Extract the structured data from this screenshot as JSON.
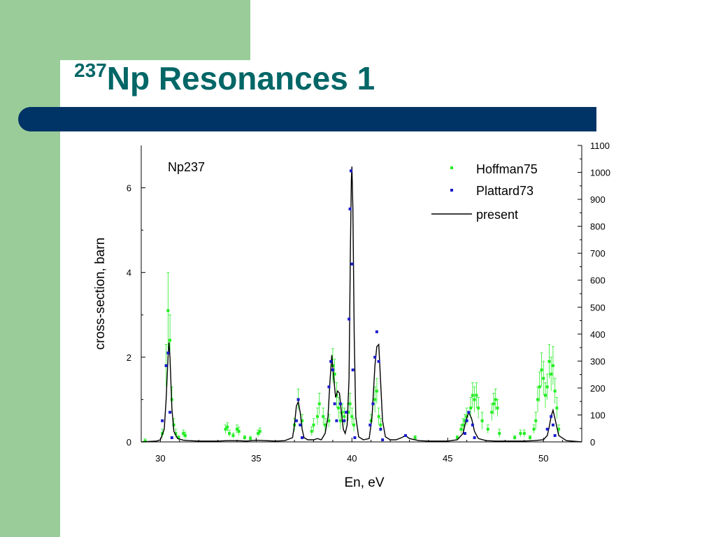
{
  "slide": {
    "title_sup": "237",
    "title_main": "Np Resonances 1",
    "colors": {
      "title": "#006666",
      "bar": "#003366",
      "accent_green": "#99cc99"
    }
  },
  "chart_data": {
    "type": "scatter",
    "annotation": "Np237",
    "xlabel": "En, eV",
    "ylabel": "cross-section, barn",
    "xlim": [
      29,
      52
    ],
    "ylim": [
      0,
      7
    ],
    "y2lim": [
      0,
      1100
    ],
    "x_ticks": [
      30,
      35,
      40,
      45,
      50
    ],
    "y_ticks": [
      0,
      2,
      4,
      6
    ],
    "y2_ticks": [
      0,
      100,
      200,
      300,
      400,
      500,
      600,
      700,
      800,
      900,
      1000,
      1100
    ],
    "legend_position": "top-right",
    "series": [
      {
        "name": "Hoffman75",
        "kind": "points",
        "color": "#22ee22",
        "points": [
          [
            29.2,
            0.02
          ],
          [
            30.1,
            0.2
          ],
          [
            30.3,
            1.8
          ],
          [
            30.4,
            3.1
          ],
          [
            30.5,
            2.4
          ],
          [
            30.6,
            1.0
          ],
          [
            30.7,
            0.4
          ],
          [
            30.8,
            0.2
          ],
          [
            30.95,
            0.1
          ],
          [
            31.2,
            0.2
          ],
          [
            31.3,
            0.15
          ],
          [
            33.4,
            0.3
          ],
          [
            33.5,
            0.35
          ],
          [
            33.6,
            0.2
          ],
          [
            33.8,
            0.15
          ],
          [
            34.0,
            0.3
          ],
          [
            34.1,
            0.25
          ],
          [
            34.4,
            0.1
          ],
          [
            34.7,
            0.08
          ],
          [
            35.1,
            0.2
          ],
          [
            35.2,
            0.25
          ],
          [
            37.0,
            0.4
          ],
          [
            37.2,
            1.0
          ],
          [
            37.4,
            0.5
          ],
          [
            37.9,
            0.25
          ],
          [
            38.0,
            0.4
          ],
          [
            38.2,
            0.6
          ],
          [
            38.3,
            0.9
          ],
          [
            38.5,
            0.6
          ],
          [
            38.6,
            0.4
          ],
          [
            38.8,
            0.5
          ],
          [
            39.0,
            1.8
          ],
          [
            39.1,
            1.6
          ],
          [
            39.2,
            1.1
          ],
          [
            39.3,
            0.8
          ],
          [
            39.4,
            0.5
          ],
          [
            39.5,
            0.7
          ],
          [
            39.6,
            0.6
          ],
          [
            39.8,
            0.7
          ],
          [
            39.9,
            0.9
          ],
          [
            40.0,
            0.6
          ],
          [
            40.1,
            0.4
          ],
          [
            41.0,
            0.5
          ],
          [
            41.2,
            1.0
          ],
          [
            41.3,
            1.2
          ],
          [
            41.4,
            0.6
          ],
          [
            41.5,
            0.4
          ],
          [
            43.3,
            0.1
          ],
          [
            45.5,
            0.1
          ],
          [
            45.7,
            0.3
          ],
          [
            45.8,
            0.4
          ],
          [
            45.9,
            0.5
          ],
          [
            46.0,
            0.6
          ],
          [
            46.2,
            0.8
          ],
          [
            46.3,
            1.1
          ],
          [
            46.4,
            1.0
          ],
          [
            46.5,
            1.1
          ],
          [
            46.6,
            0.8
          ],
          [
            46.8,
            0.5
          ],
          [
            47.1,
            0.3
          ],
          [
            47.3,
            0.7
          ],
          [
            47.4,
            0.9
          ],
          [
            47.5,
            1.0
          ],
          [
            47.6,
            0.8
          ],
          [
            47.7,
            0.2
          ],
          [
            48.5,
            0.1
          ],
          [
            48.8,
            0.2
          ],
          [
            49.0,
            0.2
          ],
          [
            49.3,
            0.1
          ],
          [
            49.5,
            0.3
          ],
          [
            49.6,
            0.5
          ],
          [
            49.7,
            1.0
          ],
          [
            49.8,
            1.3
          ],
          [
            49.9,
            1.7
          ],
          [
            50.0,
            1.5
          ],
          [
            50.1,
            1.1
          ],
          [
            50.2,
            1.3
          ],
          [
            50.3,
            1.9
          ],
          [
            50.4,
            1.6
          ],
          [
            50.5,
            1.8
          ],
          [
            50.6,
            1.2
          ],
          [
            50.7,
            0.8
          ],
          [
            50.8,
            0.3
          ]
        ],
        "errors": [
          0.05,
          0.1,
          0.5,
          0.9,
          0.6,
          0.3,
          0.15,
          0.1,
          0.05,
          0.08,
          0.08,
          0.1,
          0.1,
          0.08,
          0.06,
          0.1,
          0.1,
          0.05,
          0.05,
          0.08,
          0.08,
          0.15,
          0.25,
          0.15,
          0.1,
          0.15,
          0.2,
          0.25,
          0.2,
          0.15,
          0.15,
          0.4,
          0.35,
          0.3,
          0.25,
          0.2,
          0.2,
          0.2,
          0.2,
          0.25,
          0.2,
          0.15,
          0.15,
          0.3,
          0.3,
          0.2,
          0.15,
          0.05,
          0.05,
          0.1,
          0.15,
          0.15,
          0.2,
          0.25,
          0.3,
          0.3,
          0.3,
          0.25,
          0.2,
          0.1,
          0.2,
          0.25,
          0.25,
          0.2,
          0.1,
          0.05,
          0.08,
          0.08,
          0.05,
          0.1,
          0.2,
          0.3,
          0.35,
          0.4,
          0.4,
          0.3,
          0.3,
          0.4,
          0.4,
          0.45,
          0.3,
          0.25,
          0.1
        ]
      },
      {
        "name": "Plattard73",
        "kind": "points",
        "color": "#1a1acc",
        "points": [
          [
            30.1,
            0.5
          ],
          [
            30.3,
            1.8
          ],
          [
            30.4,
            2.1
          ],
          [
            30.5,
            0.7
          ],
          [
            30.6,
            0.1
          ],
          [
            37.1,
            0.5
          ],
          [
            37.2,
            1.0
          ],
          [
            37.3,
            0.4
          ],
          [
            37.4,
            0.1
          ],
          [
            38.8,
            1.3
          ],
          [
            38.9,
            1.9
          ],
          [
            39.0,
            1.7
          ],
          [
            39.1,
            0.9
          ],
          [
            39.2,
            0.5
          ],
          [
            39.4,
            0.9
          ],
          [
            39.6,
            0.5
          ],
          [
            39.7,
            0.7
          ],
          [
            39.85,
            2.9
          ],
          [
            39.9,
            5.5
          ],
          [
            39.95,
            6.4
          ],
          [
            40.0,
            4.2
          ],
          [
            40.05,
            1.7
          ],
          [
            40.15,
            0.1
          ],
          [
            40.95,
            0.4
          ],
          [
            41.1,
            0.9
          ],
          [
            41.2,
            2.0
          ],
          [
            41.3,
            2.6
          ],
          [
            41.4,
            1.9
          ],
          [
            41.5,
            0.3
          ],
          [
            41.6,
            0.05
          ],
          [
            42.8,
            0.15
          ],
          [
            45.9,
            0.2
          ],
          [
            46.0,
            0.5
          ],
          [
            46.1,
            0.7
          ],
          [
            46.3,
            0.4
          ],
          [
            46.4,
            0.1
          ],
          [
            50.2,
            0.3
          ],
          [
            50.4,
            0.6
          ],
          [
            50.5,
            0.4
          ],
          [
            50.6,
            0.15
          ]
        ]
      },
      {
        "name": "present",
        "kind": "line",
        "color": "#000000",
        "x": [
          29.0,
          29.8,
          30.0,
          30.2,
          30.3,
          30.4,
          30.45,
          30.5,
          30.6,
          30.7,
          30.9,
          31.2,
          31.5,
          32.0,
          32.5,
          33.0,
          33.5,
          34.0,
          34.5,
          35.0,
          35.5,
          36.0,
          36.5,
          36.9,
          37.0,
          37.1,
          37.2,
          37.3,
          37.4,
          37.5,
          37.7,
          38.0,
          38.2,
          38.4,
          38.6,
          38.75,
          38.85,
          38.95,
          39.05,
          39.15,
          39.25,
          39.35,
          39.45,
          39.55,
          39.65,
          39.75,
          39.85,
          39.92,
          39.97,
          40.0,
          40.05,
          40.12,
          40.2,
          40.35,
          40.6,
          40.9,
          41.05,
          41.2,
          41.3,
          41.4,
          41.5,
          41.6,
          41.75,
          42.0,
          42.3,
          42.6,
          42.8,
          43.0,
          43.5,
          44.0,
          44.5,
          45.0,
          45.5,
          45.8,
          45.95,
          46.1,
          46.25,
          46.4,
          46.6,
          47.0,
          47.5,
          48.0,
          48.5,
          49.0,
          49.5,
          50.0,
          50.2,
          50.3,
          50.4,
          50.5,
          50.6,
          50.8,
          51.2,
          52.0
        ],
        "y": [
          0.0,
          0.02,
          0.05,
          0.3,
          1.0,
          2.0,
          2.35,
          2.0,
          0.8,
          0.25,
          0.08,
          0.04,
          0.03,
          0.02,
          0.02,
          0.02,
          0.03,
          0.03,
          0.02,
          0.04,
          0.03,
          0.02,
          0.03,
          0.1,
          0.4,
          0.85,
          0.95,
          0.7,
          0.3,
          0.1,
          0.05,
          0.05,
          0.08,
          0.05,
          0.2,
          0.6,
          1.4,
          2.05,
          1.5,
          1.05,
          1.2,
          1.15,
          0.7,
          0.3,
          0.2,
          0.4,
          1.5,
          4.5,
          6.2,
          6.5,
          5.5,
          2.5,
          0.6,
          0.12,
          0.05,
          0.08,
          0.6,
          1.8,
          2.25,
          2.3,
          1.4,
          0.5,
          0.12,
          0.05,
          0.05,
          0.1,
          0.15,
          0.08,
          0.03,
          0.02,
          0.02,
          0.02,
          0.05,
          0.2,
          0.5,
          0.7,
          0.55,
          0.25,
          0.08,
          0.03,
          0.02,
          0.02,
          0.02,
          0.02,
          0.03,
          0.05,
          0.15,
          0.35,
          0.6,
          0.75,
          0.55,
          0.15,
          0.03,
          0.0
        ]
      }
    ]
  }
}
